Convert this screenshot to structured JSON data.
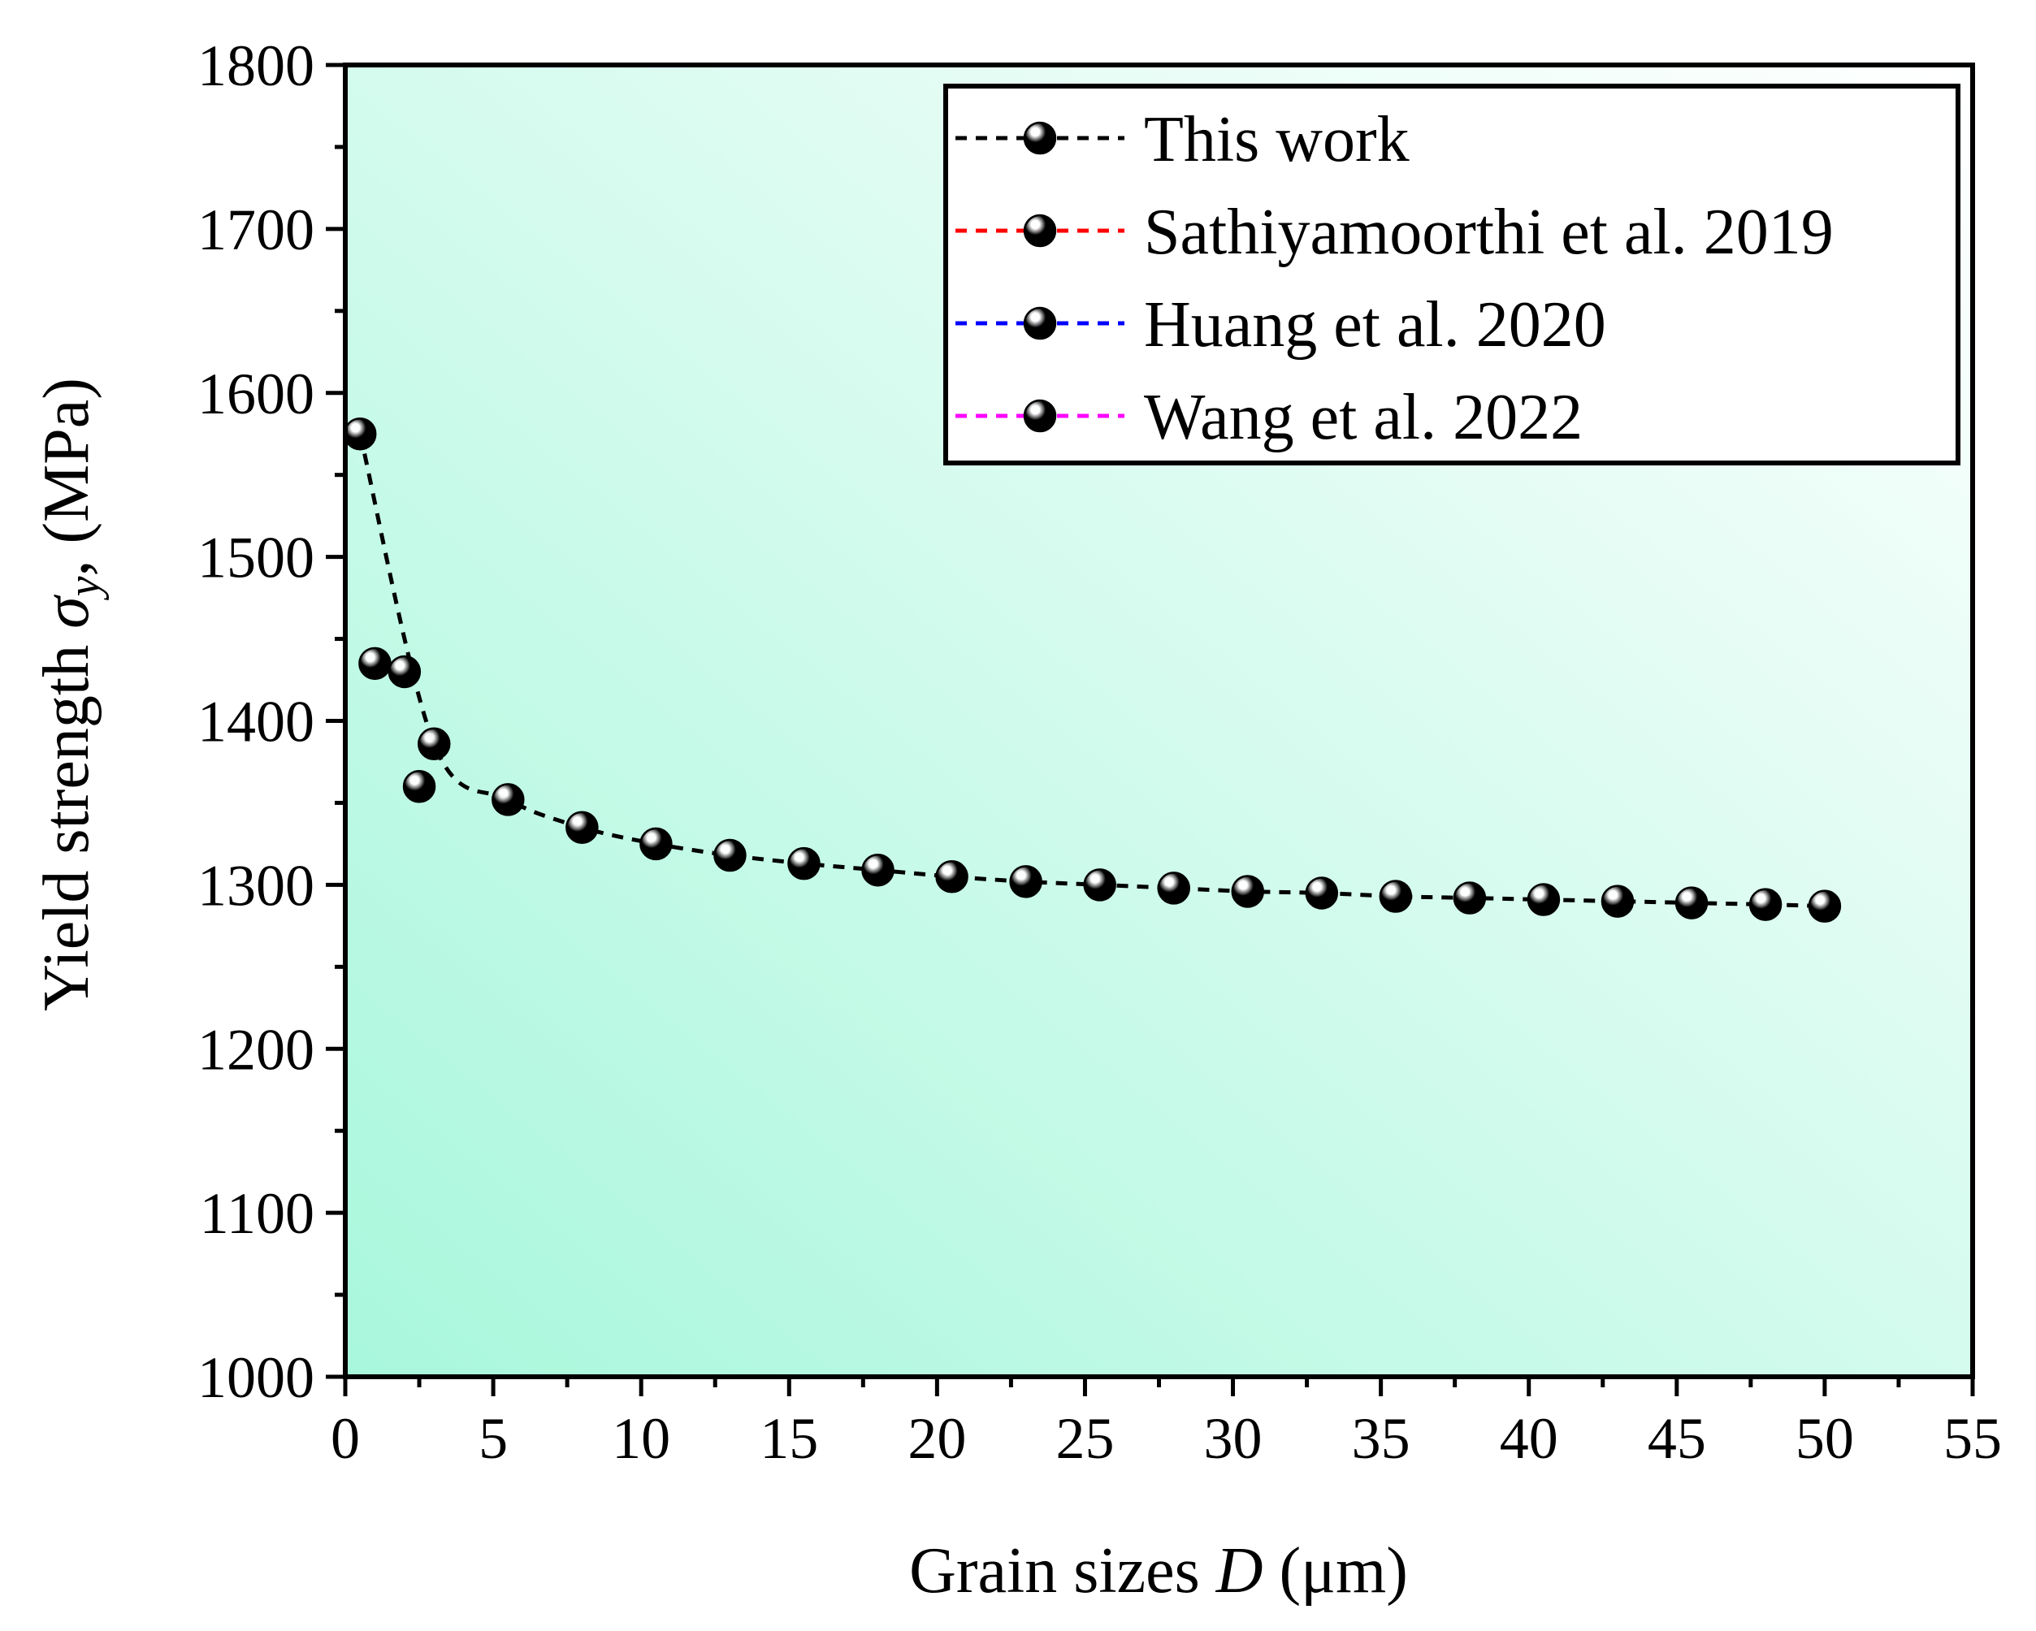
{
  "chart_data": {
    "type": "scatter",
    "xlabel": {
      "prefix": "Grain sizes ",
      "var": "D",
      "suffix": " (μm)"
    },
    "ylabel": {
      "prefix": "Yield strength ",
      "var": "σ",
      "sub": "y",
      "suffix": ", (MPa)"
    },
    "xlim": [
      0,
      55
    ],
    "ylim": [
      1000,
      1800
    ],
    "xticks": [
      "0",
      "5",
      "10",
      "15",
      "20",
      "25",
      "30",
      "35",
      "40",
      "45",
      "50",
      "55"
    ],
    "yticks": [
      "1000",
      "1100",
      "1200",
      "1300",
      "1400",
      "1500",
      "1600",
      "1700",
      "1800"
    ],
    "background_gradient": {
      "from": "#a8f7dc",
      "to": "#ffffff"
    },
    "legend_position": "top-right",
    "series": [
      {
        "name": "This work",
        "color": "#000000",
        "line": "dashed",
        "x": [
          0.5,
          3,
          5.5,
          8,
          10.5,
          13,
          15.5,
          18,
          20.5,
          23,
          25.5,
          28,
          30.5,
          33,
          35.5,
          38,
          40.5,
          43,
          45.5,
          48,
          50
        ],
        "y": [
          1575,
          1386,
          1352,
          1335,
          1325,
          1318,
          1313,
          1309,
          1305,
          1302,
          1300,
          1298,
          1296,
          1295,
          1293,
          1292,
          1291,
          1290,
          1289,
          1288,
          1287
        ]
      },
      {
        "name": "Sathiyamoorthi et al. 2019",
        "color": "#ff0000",
        "line": "dashed",
        "x": [
          1.0
        ],
        "y": [
          1435
        ]
      },
      {
        "name": "Huang et al. 2020",
        "color": "#0000ff",
        "line": "dashed",
        "x": [
          2.0
        ],
        "y": [
          1430
        ]
      },
      {
        "name": "Wang et al. 2022",
        "color": "#ff00ff",
        "line": "dashed",
        "x": [
          2.5
        ],
        "y": [
          1360
        ]
      }
    ]
  }
}
